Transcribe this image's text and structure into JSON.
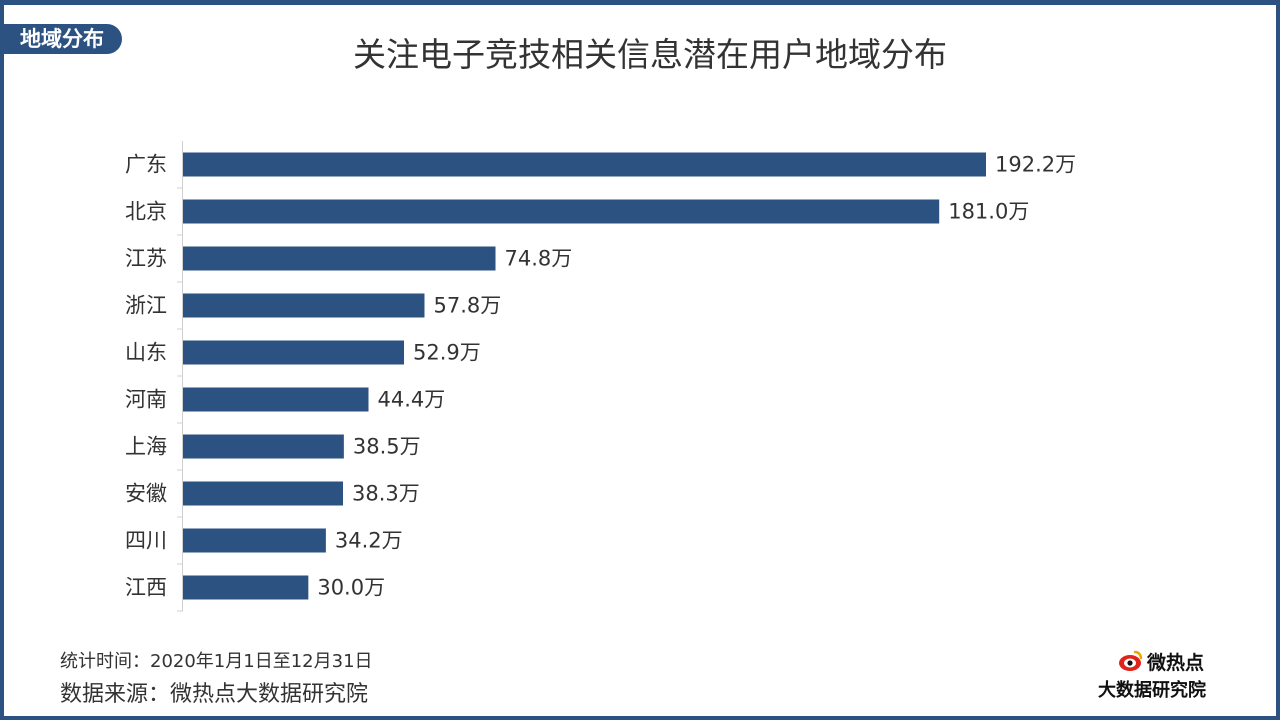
{
  "header": {
    "tag": "地域分布",
    "title": "关注电子竞技相关信息潜在用户地域分布"
  },
  "chart_data": {
    "type": "bar",
    "orientation": "horizontal",
    "title": "关注电子竞技相关信息潜在用户地域分布",
    "unit": "万",
    "categories": [
      "广东",
      "北京",
      "江苏",
      "浙江",
      "山东",
      "河南",
      "上海",
      "安徽",
      "四川",
      "江西"
    ],
    "values": [
      192.2,
      181.0,
      74.8,
      57.8,
      52.9,
      44.4,
      38.5,
      38.3,
      34.2,
      30.0
    ],
    "value_labels": [
      "192.2万",
      "181.0万",
      "74.8万",
      "57.8万",
      "52.9万",
      "44.4万",
      "38.5万",
      "38.3万",
      "34.2万",
      "30.0万"
    ],
    "xlim": [
      0,
      192.2
    ],
    "bar_color": "#2c5282",
    "grid": false,
    "legend": "none"
  },
  "footer": {
    "period": "统计时间：2020年1月1日至12月31日",
    "source": "数据来源：微热点大数据研究院",
    "logo_top": "微热点",
    "logo_bottom": "大数据研究院"
  },
  "colors": {
    "accent": "#2c5282",
    "text": "#333333"
  }
}
